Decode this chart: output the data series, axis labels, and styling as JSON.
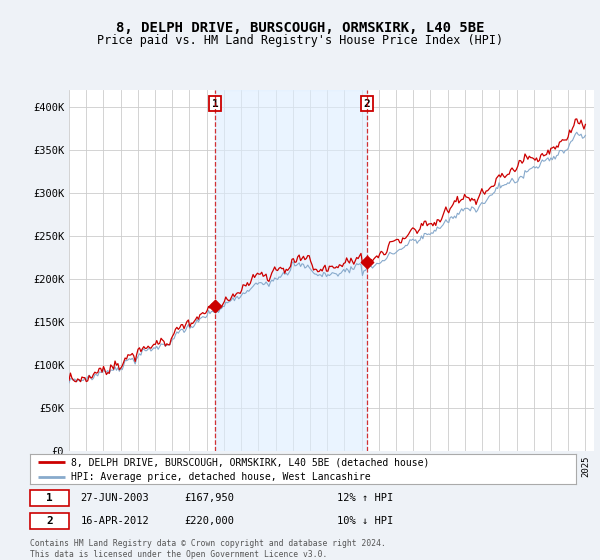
{
  "title": "8, DELPH DRIVE, BURSCOUGH, ORMSKIRK, L40 5BE",
  "subtitle": "Price paid vs. HM Land Registry's House Price Index (HPI)",
  "ylim": [
    0,
    420000
  ],
  "yticks": [
    0,
    50000,
    100000,
    150000,
    200000,
    250000,
    300000,
    350000,
    400000
  ],
  "ytick_labels": [
    "£0",
    "£50K",
    "£100K",
    "£150K",
    "£200K",
    "£250K",
    "£300K",
    "£350K",
    "£400K"
  ],
  "x_start_year": 1995,
  "x_end_year": 2025,
  "red_line_color": "#cc0000",
  "blue_line_color": "#88aacc",
  "blue_fill_color": "#ddeeff",
  "marker1_year": 2003.5,
  "marker1_value": 167950,
  "marker2_year": 2012.3,
  "marker2_value": 220000,
  "marker1_date_str": "27-JUN-2003",
  "marker1_price_str": "£167,950",
  "marker1_hpi_str": "12% ↑ HPI",
  "marker2_date_str": "16-APR-2012",
  "marker2_price_str": "£220,000",
  "marker2_hpi_str": "10% ↓ HPI",
  "legend_label_red": "8, DELPH DRIVE, BURSCOUGH, ORMSKIRK, L40 5BE (detached house)",
  "legend_label_blue": "HPI: Average price, detached house, West Lancashire",
  "footer_text": "Contains HM Land Registry data © Crown copyright and database right 2024.\nThis data is licensed under the Open Government Licence v3.0.",
  "background_color": "#eef2f7",
  "plot_bg_color": "#ffffff",
  "grid_color": "#cccccc",
  "title_fontsize": 10,
  "subtitle_fontsize": 8.5
}
